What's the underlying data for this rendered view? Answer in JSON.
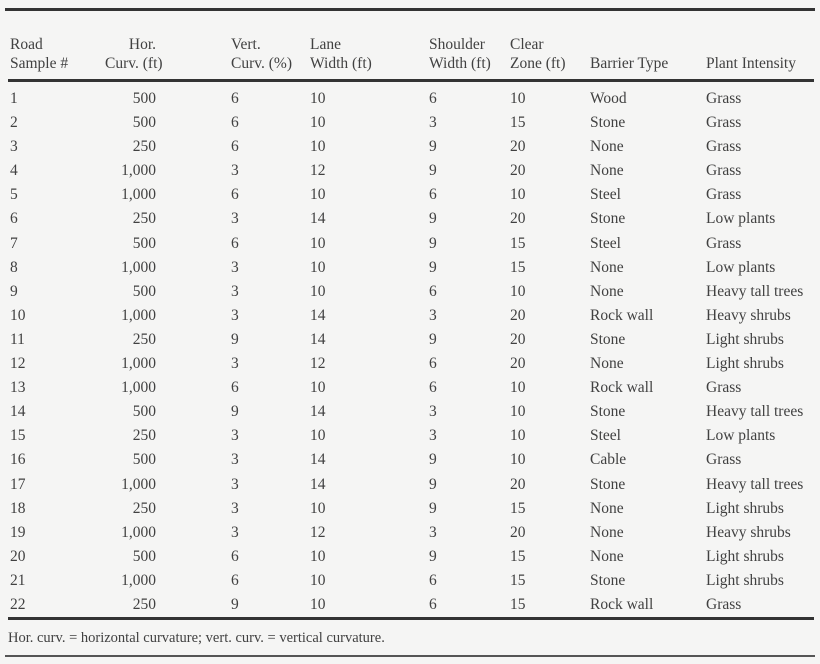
{
  "colors": {
    "background": "#f5f5f4",
    "text": "#414141",
    "rule": "#333333"
  },
  "table": {
    "columns": [
      {
        "line1": "Road",
        "line2": "Sample #"
      },
      {
        "line1": "Hor.",
        "line2": "Curv. (ft)"
      },
      {
        "line1": "Vert.",
        "line2": "Curv. (%)"
      },
      {
        "line1": "Lane",
        "line2": "Width (ft)"
      },
      {
        "line1": "Shoulder",
        "line2": "Width (ft)"
      },
      {
        "line1": "Clear",
        "line2": "Zone (ft)"
      },
      {
        "line1": "",
        "line2": "Barrier Type"
      },
      {
        "line1": "",
        "line2": "Plant Intensity"
      }
    ],
    "rows": [
      [
        "1",
        "500",
        "6",
        "10",
        "6",
        "10",
        "Wood",
        "Grass"
      ],
      [
        "2",
        "500",
        "6",
        "10",
        "3",
        "15",
        "Stone",
        "Grass"
      ],
      [
        "3",
        "250",
        "6",
        "10",
        "9",
        "20",
        "None",
        "Grass"
      ],
      [
        "4",
        "1,000",
        "3",
        "12",
        "9",
        "20",
        "None",
        "Grass"
      ],
      [
        "5",
        "1,000",
        "6",
        "10",
        "6",
        "10",
        "Steel",
        "Grass"
      ],
      [
        "6",
        "250",
        "3",
        "14",
        "9",
        "20",
        "Stone",
        "Low plants"
      ],
      [
        "7",
        "500",
        "6",
        "10",
        "9",
        "15",
        "Steel",
        "Grass"
      ],
      [
        "8",
        "1,000",
        "3",
        "10",
        "9",
        "15",
        "None",
        "Low plants"
      ],
      [
        "9",
        "500",
        "3",
        "10",
        "6",
        "10",
        "None",
        "Heavy tall trees"
      ],
      [
        "10",
        "1,000",
        "3",
        "14",
        "3",
        "20",
        "Rock wall",
        "Heavy shrubs"
      ],
      [
        "11",
        "250",
        "9",
        "14",
        "9",
        "20",
        "Stone",
        "Light shrubs"
      ],
      [
        "12",
        "1,000",
        "3",
        "12",
        "6",
        "20",
        "None",
        "Light shrubs"
      ],
      [
        "13",
        "1,000",
        "6",
        "10",
        "6",
        "10",
        "Rock wall",
        "Grass"
      ],
      [
        "14",
        "500",
        "9",
        "14",
        "3",
        "10",
        "Stone",
        "Heavy tall trees"
      ],
      [
        "15",
        "250",
        "3",
        "10",
        "3",
        "10",
        "Steel",
        "Low plants"
      ],
      [
        "16",
        "500",
        "3",
        "14",
        "9",
        "10",
        "Cable",
        "Grass"
      ],
      [
        "17",
        "1,000",
        "3",
        "14",
        "9",
        "20",
        "Stone",
        "Heavy tall trees"
      ],
      [
        "18",
        "250",
        "3",
        "10",
        "9",
        "15",
        "None",
        "Light shrubs"
      ],
      [
        "19",
        "1,000",
        "3",
        "12",
        "3",
        "20",
        "None",
        "Heavy shrubs"
      ],
      [
        "20",
        "500",
        "6",
        "10",
        "9",
        "15",
        "None",
        "Light shrubs"
      ],
      [
        "21",
        "1,000",
        "6",
        "10",
        "6",
        "15",
        "Stone",
        "Light shrubs"
      ],
      [
        "22",
        "250",
        "9",
        "10",
        "6",
        "15",
        "Rock wall",
        "Grass"
      ]
    ],
    "footnote": "Hor. curv. = horizontal curvature; vert. curv. = vertical curvature."
  }
}
